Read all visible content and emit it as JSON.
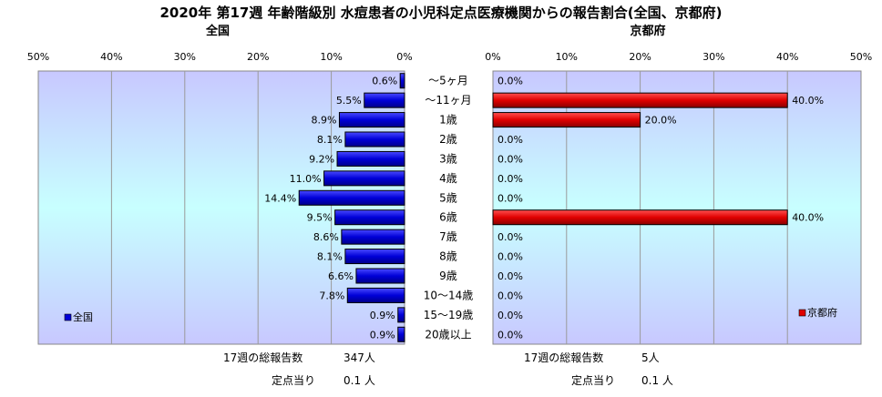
{
  "title": "2020年 第17週 年齢階級別 水痘患者の小児科定点医療機関からの報告割合(全国、京都府)",
  "categories": [
    "～5ヶ月",
    "～11ヶ月",
    "1歳",
    "2歳",
    "3歳",
    "4歳",
    "5歳",
    "6歳",
    "7歳",
    "8歳",
    "9歳",
    "10～14歳",
    "15～19歳",
    "20歳以上"
  ],
  "chart_data": [
    {
      "type": "bar",
      "orientation": "horizontal",
      "title": "全国",
      "categories": [
        "～5ヶ月",
        "～11ヶ月",
        "1歳",
        "2歳",
        "3歳",
        "4歳",
        "5歳",
        "6歳",
        "7歳",
        "8歳",
        "9歳",
        "10～14歳",
        "15～19歳",
        "20歳以上"
      ],
      "series": [
        {
          "name": "全国",
          "values": [
            0.6,
            5.5,
            8.9,
            8.1,
            9.2,
            11.0,
            14.4,
            9.5,
            8.6,
            8.1,
            6.6,
            7.8,
            0.9,
            0.9
          ]
        }
      ],
      "value_labels": [
        "0.6%",
        "5.5%",
        "8.9%",
        "8.1%",
        "9.2%",
        "11.0%",
        "14.4%",
        "9.5%",
        "8.6%",
        "8.1%",
        "6.6%",
        "7.8%",
        "0.9%",
        "0.9%"
      ],
      "xlim": [
        0,
        50
      ],
      "x_direction": "reversed",
      "ticks": [
        "50%",
        "40%",
        "30%",
        "20%",
        "10%",
        "0%"
      ],
      "legend_position": "bottom-left",
      "grid": true
    },
    {
      "type": "bar",
      "orientation": "horizontal",
      "title": "京都府",
      "categories": [
        "～5ヶ月",
        "～11ヶ月",
        "1歳",
        "2歳",
        "3歳",
        "4歳",
        "5歳",
        "6歳",
        "7歳",
        "8歳",
        "9歳",
        "10～14歳",
        "15～19歳",
        "20歳以上"
      ],
      "series": [
        {
          "name": "京都府",
          "values": [
            0.0,
            40.0,
            20.0,
            0.0,
            0.0,
            0.0,
            0.0,
            40.0,
            0.0,
            0.0,
            0.0,
            0.0,
            0.0,
            0.0
          ]
        }
      ],
      "value_labels": [
        "0.0%",
        "40.0%",
        "20.0%",
        "0.0%",
        "0.0%",
        "0.0%",
        "0.0%",
        "40.0%",
        "0.0%",
        "0.0%",
        "0.0%",
        "0.0%",
        "0.0%",
        "0.0%"
      ],
      "xlim": [
        0,
        50
      ],
      "x_direction": "normal",
      "ticks": [
        "0%",
        "10%",
        "20%",
        "30%",
        "40%",
        "50%"
      ],
      "legend_position": "bottom-right",
      "grid": true
    }
  ],
  "footer": {
    "national": {
      "reports_label": "17週の総報告数",
      "reports_value": "347人",
      "per_site_label": "定点当り",
      "per_site_value": "0.1 人"
    },
    "kyoto": {
      "reports_label": "17週の総報告数",
      "reports_value": "5人",
      "per_site_label": "定点当り",
      "per_site_value": "0.1 人"
    }
  },
  "colors": {
    "national_bar": "#0000d8",
    "national_bar_light": "#4a4aff",
    "kyoto_bar": "#e00000",
    "kyoto_bar_light": "#ff5050",
    "plot_bg_top": "#c8c8ff",
    "plot_bg_mid": "#c8ffff",
    "plot_bg_bottom": "#c8c8ff",
    "grid": "#9a9a9a"
  }
}
